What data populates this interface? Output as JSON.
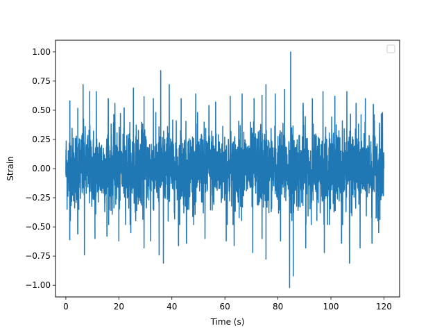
{
  "chart_data": {
    "type": "line",
    "title": "",
    "xlabel": "Time (s)",
    "ylabel": "Strain",
    "xlim": [
      -3.9,
      125.9
    ],
    "ylim": [
      -1.1,
      1.1
    ],
    "x_ticks": [
      0,
      20,
      40,
      60,
      80,
      100,
      120
    ],
    "x_tick_labels": [
      "0",
      "20",
      "40",
      "60",
      "80",
      "100",
      "120"
    ],
    "y_ticks": [
      -1.0,
      -0.75,
      -0.5,
      -0.25,
      0.0,
      0.25,
      0.5,
      0.75,
      1.0
    ],
    "y_tick_labels": [
      "−1.00",
      "−0.75",
      "−0.50",
      "−0.25",
      "0.00",
      "0.25",
      "0.50",
      "0.75",
      "1.00"
    ],
    "grid": false,
    "legend": {
      "placement": "upper-right",
      "entries": []
    },
    "series": [
      {
        "color": "#1f77b4",
        "x_range": [
          0,
          120
        ],
        "typical_amplitude": 0.4,
        "upper_peaks": [
          {
            "x": 1.5,
            "y": 0.58
          },
          {
            "x": 4.5,
            "y": 0.52
          },
          {
            "x": 6.5,
            "y": 0.72
          },
          {
            "x": 9,
            "y": 0.66
          },
          {
            "x": 11.5,
            "y": 0.66
          },
          {
            "x": 16,
            "y": 0.6
          },
          {
            "x": 18.5,
            "y": 0.56
          },
          {
            "x": 22,
            "y": 0.52
          },
          {
            "x": 25.5,
            "y": 0.69
          },
          {
            "x": 29.5,
            "y": 0.62
          },
          {
            "x": 33,
            "y": 0.6
          },
          {
            "x": 35.8,
            "y": 0.84
          },
          {
            "x": 39,
            "y": 0.72
          },
          {
            "x": 43.5,
            "y": 0.6
          },
          {
            "x": 49,
            "y": 0.64
          },
          {
            "x": 54,
            "y": 0.54
          },
          {
            "x": 56.5,
            "y": 0.57
          },
          {
            "x": 62,
            "y": 0.62
          },
          {
            "x": 66.5,
            "y": 0.64
          },
          {
            "x": 71,
            "y": 0.6
          },
          {
            "x": 74,
            "y": 0.63
          },
          {
            "x": 75.5,
            "y": 0.72
          },
          {
            "x": 79,
            "y": 0.64
          },
          {
            "x": 82.5,
            "y": 0.68
          },
          {
            "x": 84.8,
            "y": 1.0
          },
          {
            "x": 89.5,
            "y": 0.56
          },
          {
            "x": 93,
            "y": 0.6
          },
          {
            "x": 97,
            "y": 0.66
          },
          {
            "x": 101.5,
            "y": 0.62
          },
          {
            "x": 106,
            "y": 0.66
          },
          {
            "x": 109.5,
            "y": 0.56
          },
          {
            "x": 113,
            "y": 0.6
          },
          {
            "x": 116,
            "y": 0.55
          },
          {
            "x": 119,
            "y": 0.47
          }
        ],
        "lower_peaks": [
          {
            "x": 1.5,
            "y": -0.61
          },
          {
            "x": 4.5,
            "y": -0.56
          },
          {
            "x": 7,
            "y": -0.74
          },
          {
            "x": 11,
            "y": -0.6
          },
          {
            "x": 15.5,
            "y": -0.58
          },
          {
            "x": 20,
            "y": -0.62
          },
          {
            "x": 24.5,
            "y": -0.55
          },
          {
            "x": 29.5,
            "y": -0.68
          },
          {
            "x": 32,
            "y": -0.62
          },
          {
            "x": 35.2,
            "y": -0.74
          },
          {
            "x": 36.8,
            "y": -0.81
          },
          {
            "x": 42.5,
            "y": -0.66
          },
          {
            "x": 45.5,
            "y": -0.64
          },
          {
            "x": 52.5,
            "y": -0.6
          },
          {
            "x": 60.5,
            "y": -0.62
          },
          {
            "x": 63.5,
            "y": -0.66
          },
          {
            "x": 70.5,
            "y": -0.72
          },
          {
            "x": 74,
            "y": -0.6
          },
          {
            "x": 75.5,
            "y": -0.78
          },
          {
            "x": 81,
            "y": -0.62
          },
          {
            "x": 84.4,
            "y": -1.02
          },
          {
            "x": 85.8,
            "y": -0.92
          },
          {
            "x": 90.5,
            "y": -0.68
          },
          {
            "x": 97.5,
            "y": -0.72
          },
          {
            "x": 104,
            "y": -0.64
          },
          {
            "x": 107,
            "y": -0.81
          },
          {
            "x": 111,
            "y": -0.68
          },
          {
            "x": 115.5,
            "y": -0.64
          },
          {
            "x": 118,
            "y": -0.55
          }
        ]
      }
    ]
  }
}
